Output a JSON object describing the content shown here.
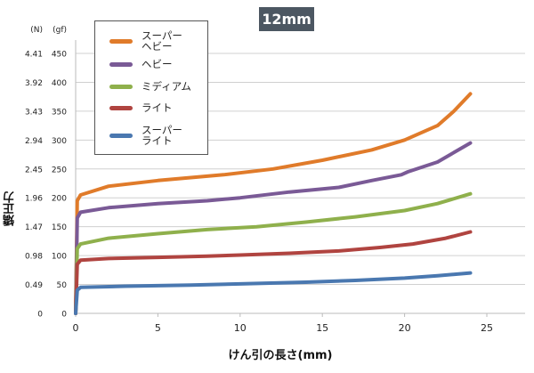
{
  "chart_data": {
    "type": "line",
    "title": "12mm",
    "xlabel": "けん引の長さ(mm)",
    "ylabel": "矯正力",
    "y_unit_labels": [
      "(N)",
      "(gf)"
    ],
    "xlim": [
      0,
      27
    ],
    "ylim": [
      0,
      450
    ],
    "x_ticks": [
      0,
      5,
      10,
      15,
      20,
      25
    ],
    "y_ticks_gf": [
      0,
      50,
      100,
      150,
      200,
      250,
      300,
      350,
      400,
      450
    ],
    "y_ticks_N": [
      "0",
      "0.49",
      "0.98",
      "1.47",
      "1.96",
      "2.45",
      "2.94",
      "3.43",
      "3.92",
      "4.41"
    ],
    "grid": "horizontal",
    "legend_placement": "top-left",
    "series": [
      {
        "name": "スーパー\nヘビー",
        "color": "#e07b2a",
        "x": [
          0,
          0.1,
          0.3,
          2,
          5,
          9,
          12,
          15,
          18,
          20,
          22,
          23,
          24
        ],
        "y": [
          0,
          195,
          205,
          220,
          230,
          240,
          250,
          265,
          283,
          300,
          325,
          350,
          380
        ]
      },
      {
        "name": "ヘビー",
        "color": "#7a5a96",
        "x": [
          0,
          0.1,
          0.3,
          2,
          5,
          8,
          10,
          13,
          16,
          18,
          19.8,
          20.2,
          22,
          24
        ],
        "y": [
          0,
          165,
          175,
          183,
          190,
          195,
          200,
          210,
          218,
          230,
          240,
          245,
          262,
          295
        ]
      },
      {
        "name": "ミディアム",
        "color": "#8fb04c",
        "x": [
          0,
          0.1,
          0.3,
          2,
          5,
          8,
          11,
          14,
          17,
          20,
          22,
          24
        ],
        "y": [
          0,
          112,
          120,
          130,
          138,
          145,
          150,
          158,
          167,
          178,
          190,
          207
        ]
      },
      {
        "name": "ライト",
        "color": "#b04440",
        "x": [
          0,
          0.1,
          0.3,
          2,
          5,
          8,
          10,
          13,
          16,
          18.5,
          20.5,
          22.5,
          24
        ],
        "y": [
          0,
          85,
          92,
          95,
          97,
          99,
          101,
          104,
          108,
          114,
          120,
          130,
          141
        ]
      },
      {
        "name": "スーパー\nライト",
        "color": "#4a78b0",
        "x": [
          0,
          0.1,
          0.3,
          3,
          7,
          10,
          14,
          17,
          20,
          22,
          24
        ],
        "y": [
          0,
          40,
          45,
          47,
          49,
          51,
          54,
          57,
          61,
          65,
          70
        ]
      }
    ]
  }
}
